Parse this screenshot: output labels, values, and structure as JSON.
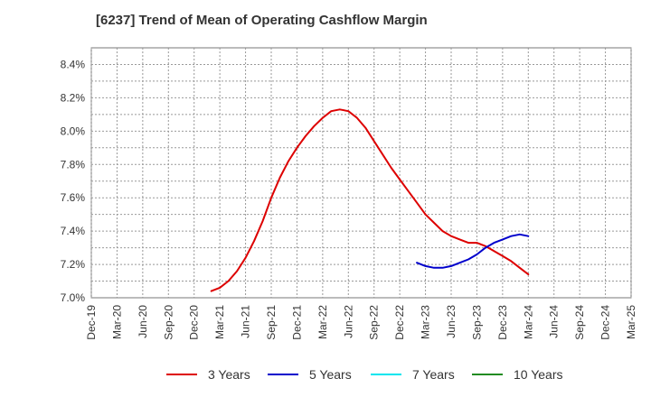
{
  "chart_data": {
    "type": "line",
    "title": "[6237]  Trend of Mean of Operating Cashflow Margin",
    "xlabel": "",
    "ylabel": "",
    "x_ticks": [
      "Dec-19",
      "Mar-20",
      "Jun-20",
      "Sep-20",
      "Dec-20",
      "Mar-21",
      "Jun-21",
      "Sep-21",
      "Dec-21",
      "Mar-22",
      "Jun-22",
      "Sep-22",
      "Dec-22",
      "Mar-23",
      "Jun-23",
      "Sep-23",
      "Dec-23",
      "Mar-24",
      "Jun-24",
      "Sep-24",
      "Dec-24",
      "Mar-25"
    ],
    "y_ticks": [
      "7.0%",
      "7.2%",
      "7.4%",
      "7.6%",
      "7.8%",
      "8.0%",
      "8.2%",
      "8.4%"
    ],
    "ylim": [
      7.0,
      8.5
    ],
    "grid": true,
    "legend_position": "bottom",
    "series": [
      {
        "name": "3 Years",
        "color": "#dd0000",
        "points": [
          [
            "Feb-21",
            7.04
          ],
          [
            "Mar-21",
            7.06
          ],
          [
            "Apr-21",
            7.1
          ],
          [
            "May-21",
            7.16
          ],
          [
            "Jun-21",
            7.24
          ],
          [
            "Jul-21",
            7.34
          ],
          [
            "Aug-21",
            7.46
          ],
          [
            "Sep-21",
            7.6
          ],
          [
            "Oct-21",
            7.72
          ],
          [
            "Nov-21",
            7.82
          ],
          [
            "Dec-21",
            7.9
          ],
          [
            "Jan-22",
            7.97
          ],
          [
            "Feb-22",
            8.03
          ],
          [
            "Mar-22",
            8.08
          ],
          [
            "Apr-22",
            8.12
          ],
          [
            "May-22",
            8.13
          ],
          [
            "Jun-22",
            8.12
          ],
          [
            "Jul-22",
            8.08
          ],
          [
            "Aug-22",
            8.02
          ],
          [
            "Sep-22",
            7.94
          ],
          [
            "Oct-22",
            7.86
          ],
          [
            "Nov-22",
            7.78
          ],
          [
            "Dec-22",
            7.71
          ],
          [
            "Jan-23",
            7.64
          ],
          [
            "Feb-23",
            7.57
          ],
          [
            "Mar-23",
            7.5
          ],
          [
            "Apr-23",
            7.45
          ],
          [
            "May-23",
            7.4
          ],
          [
            "Jun-23",
            7.37
          ],
          [
            "Jul-23",
            7.35
          ],
          [
            "Aug-23",
            7.33
          ],
          [
            "Sep-23",
            7.33
          ],
          [
            "Oct-23",
            7.31
          ],
          [
            "Nov-23",
            7.28
          ],
          [
            "Dec-23",
            7.25
          ],
          [
            "Jan-24",
            7.22
          ],
          [
            "Feb-24",
            7.18
          ],
          [
            "Mar-24",
            7.14
          ]
        ]
      },
      {
        "name": "5 Years",
        "color": "#0000cc",
        "points": [
          [
            "Feb-23",
            7.21
          ],
          [
            "Mar-23",
            7.19
          ],
          [
            "Apr-23",
            7.18
          ],
          [
            "May-23",
            7.18
          ],
          [
            "Jun-23",
            7.19
          ],
          [
            "Jul-23",
            7.21
          ],
          [
            "Aug-23",
            7.23
          ],
          [
            "Sep-23",
            7.26
          ],
          [
            "Oct-23",
            7.3
          ],
          [
            "Nov-23",
            7.33
          ],
          [
            "Dec-23",
            7.35
          ],
          [
            "Jan-24",
            7.37
          ],
          [
            "Feb-24",
            7.38
          ],
          [
            "Mar-24",
            7.37
          ]
        ]
      },
      {
        "name": "7 Years",
        "color": "#00e5ee",
        "points": []
      },
      {
        "name": "10 Years",
        "color": "#228b22",
        "points": []
      }
    ]
  }
}
